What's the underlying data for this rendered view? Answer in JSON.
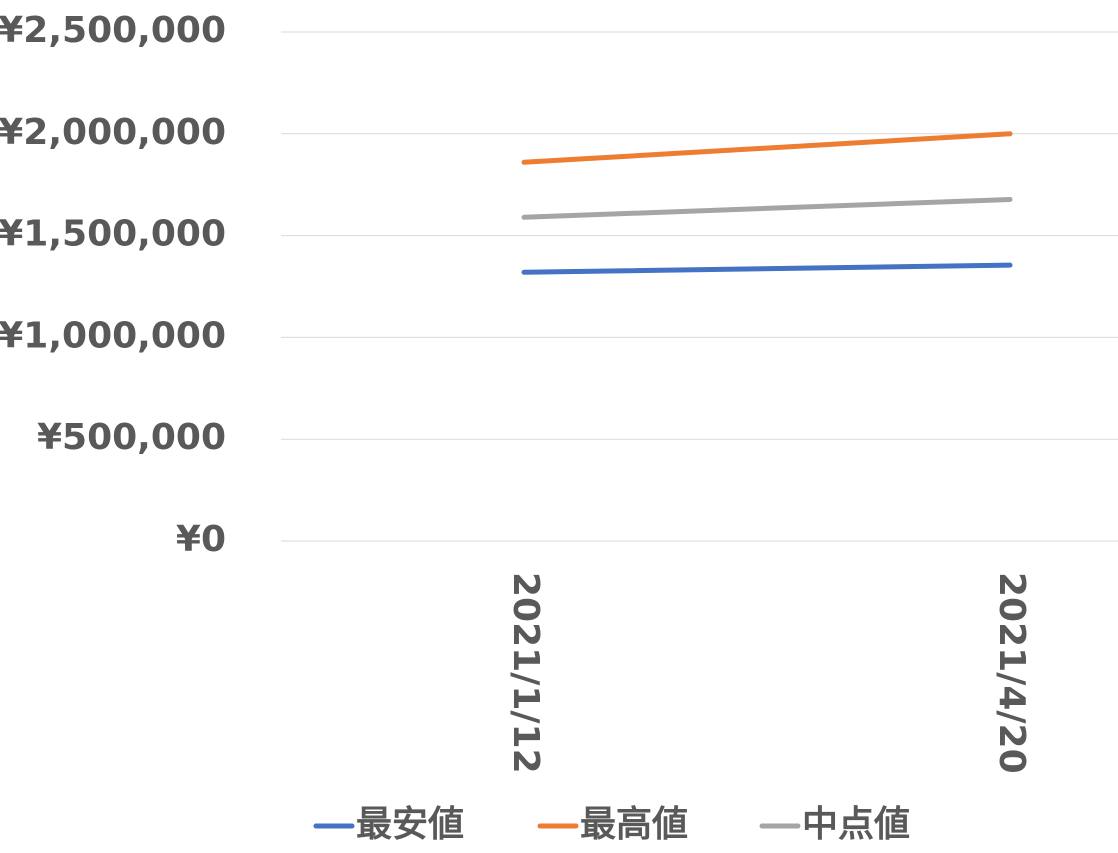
{
  "chart_data": {
    "type": "line",
    "categories": [
      "2021/1/12",
      "2021/4/20"
    ],
    "series": [
      {
        "name": "最安値",
        "color": "#4472c4",
        "values": [
          1320000,
          1355000
        ]
      },
      {
        "name": "最高値",
        "color": "#ed7d31",
        "values": [
          1860000,
          2000000
        ]
      },
      {
        "name": "中点値",
        "color": "#a5a5a5",
        "values": [
          1590000,
          1677500
        ]
      }
    ],
    "ylim": [
      0,
      2500000
    ],
    "yticks": [
      {
        "value": 0,
        "label": "¥0"
      },
      {
        "value": 500000,
        "label": "¥500,000"
      },
      {
        "value": 1000000,
        "label": "¥1,000,000"
      },
      {
        "value": 1500000,
        "label": "¥1,500,000"
      },
      {
        "value": 2000000,
        "label": "¥2,000,000"
      },
      {
        "value": 2500000,
        "label": "¥2,500,000"
      }
    ],
    "grid": true,
    "legend": "bottom"
  }
}
